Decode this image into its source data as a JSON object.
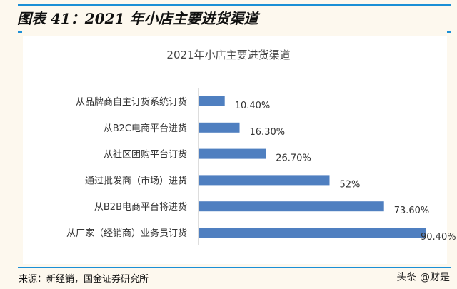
{
  "figure_title": "图表 41：2021 年小店主要进货渠道",
  "source": "来源：新经销，国金证券研究所",
  "watermark": "头条 @财是",
  "chart_data": {
    "type": "bar",
    "orientation": "horizontal",
    "title": "2021年小店主要进货渠道",
    "categories": [
      "从品牌商自主订货系统订货",
      "从B2C电商平台进货",
      "从社区团购平台订货",
      "通过批发商（市场）进货",
      "从B2B电商平台将进货",
      "从厂家（经销商）业务员订货"
    ],
    "values": [
      10.4,
      16.3,
      26.7,
      52,
      73.6,
      90.4
    ],
    "data_labels": [
      "10.40%",
      "16.30%",
      "26.70%",
      "52%",
      "73.60%",
      "90.40%"
    ],
    "xlabel": "",
    "ylabel": "",
    "xlim": [
      0,
      100
    ],
    "grid": false,
    "legend": "none",
    "bar_color": "#4f7fc0"
  }
}
